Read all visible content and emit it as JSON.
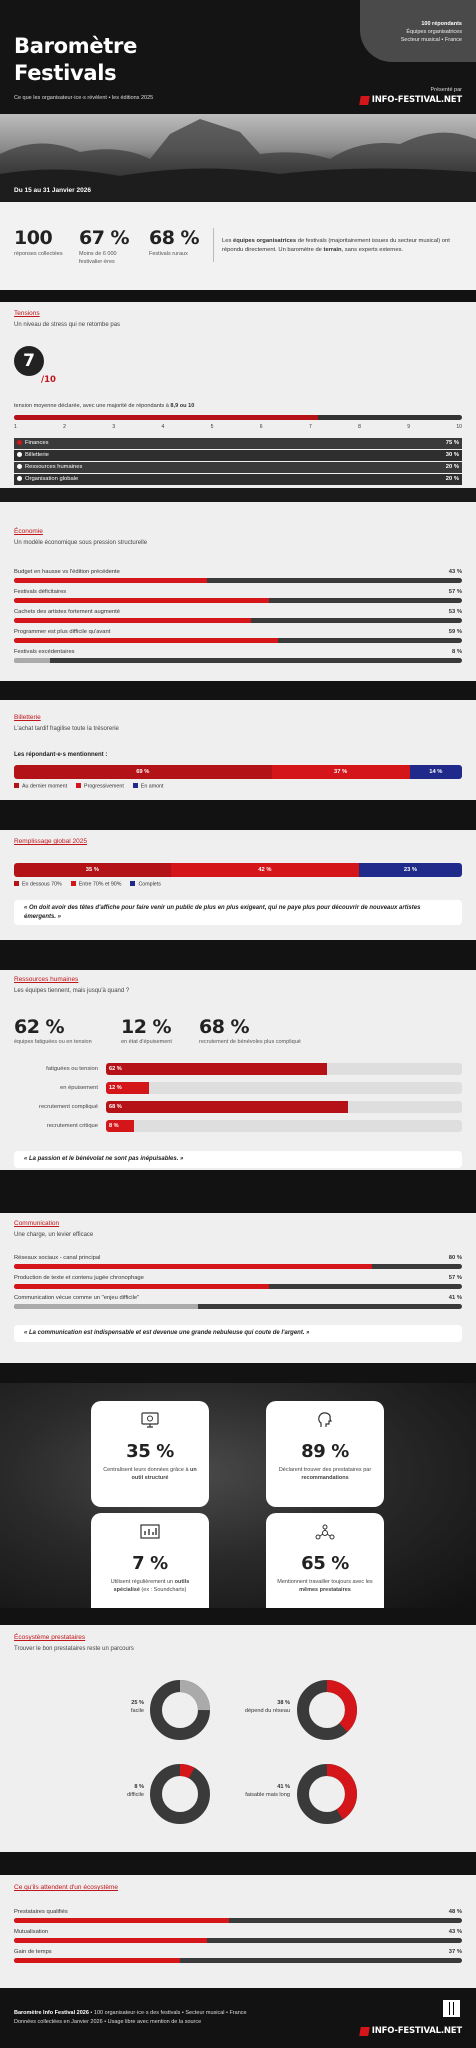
{
  "header": {
    "title_line1": "Baromètre",
    "title_line2": "Festivals",
    "tagline": "Ce que les organisateur·ice·s révèlent • les éditions 2025",
    "respondents": "100 répondants",
    "audience": "Équipes organisatrices",
    "sector": "Secteur musical • France",
    "presented_by": "Présenté par",
    "logo": "INFO-FESTIVAL.NET",
    "dates": "Du 15 au 31 Janvier 2026"
  },
  "kpis": [
    {
      "value": "100",
      "label": "réponses collectées"
    },
    {
      "value": "67 %",
      "label": "Moins de 6 000 festivalier·ères"
    },
    {
      "value": "68 %",
      "label": "Festivals ruraux"
    }
  ],
  "intro": {
    "p1": "Les ",
    "b1": "équipes organisatrices",
    "p2": " de festivals (majoritairement issues du secteur musical) ont répondu directement. Un baromètre de ",
    "b2": "terrain",
    "p3": ", sans experts externes."
  },
  "tensions": {
    "title": "Tensions",
    "subtitle": "Un niveau de stress qui ne retombe pas",
    "score": "7",
    "max": "/10",
    "mean_text": "tension moyenne déclarée, avec une majorité de répondants à ",
    "mean_bold": "8,9 ou 10",
    "mean_value": 7.1,
    "ticks": [
      "1",
      "2",
      "3",
      "4",
      "5",
      "6",
      "7",
      "8",
      "9",
      "10"
    ],
    "items": [
      {
        "label": "Finances",
        "pct": "75 %",
        "color": "#d4161b"
      },
      {
        "label": "Billetterie",
        "pct": "30 %",
        "color": "#ffffff"
      },
      {
        "label": "Ressources humaines",
        "pct": "20 %",
        "color": "#ffffff"
      },
      {
        "label": "Organisation globale",
        "pct": "20 %",
        "color": "#ffffff"
      }
    ]
  },
  "economie": {
    "title": "Économie",
    "subtitle": "Un modèle économique sous pression structurelle",
    "items": [
      {
        "label": "Budget en hausse vs l'édition précédente",
        "pct": "43 %",
        "value": 43
      },
      {
        "label": "Festivals déficitaires",
        "pct": "57 %",
        "value": 57
      },
      {
        "label": "Cachets des artistes fortement augmenté",
        "pct": "53 %",
        "value": 53
      },
      {
        "label": "Programmer est plus difficile qu'avant",
        "pct": "59 %",
        "value": 59
      },
      {
        "label": "Festivals excédentaires",
        "pct": "8 %",
        "value": 8
      }
    ]
  },
  "billetterie": {
    "title": "Billetterie",
    "subtitle": "L'achat tardif fragilise toute la trésorerie",
    "lead": "Les répondant·e·s mentionnent :",
    "segments": [
      {
        "label": "69 %",
        "value": 69,
        "color": "#b31217"
      },
      {
        "label": "37 %",
        "value": 37,
        "color": "#d4161b"
      },
      {
        "label": "14 %",
        "value": 14,
        "color": "#1f2a8a"
      }
    ],
    "legend": [
      "Au dernier moment",
      "Progressivement",
      "En amont"
    ]
  },
  "remplissage": {
    "title": "Remplissage global 2025",
    "segments": [
      {
        "label": "35 %",
        "value": 35,
        "color": "#b31217"
      },
      {
        "label": "42 %",
        "value": 42,
        "color": "#d4161b"
      },
      {
        "label": "23 %",
        "value": 23,
        "color": "#1f2a8a"
      }
    ],
    "legend": [
      "En dessous 70%",
      "Entre 70% et 90%",
      "Complets"
    ],
    "quote": "« On doit avoir des têtes d'affiche pour faire venir un public de plus en plus exigeant, qui ne paye plus pour découvrir de nouveaux artistes émergents. »"
  },
  "rh": {
    "title": "Ressources humaines",
    "subtitle": "Les équipes tiennent, mais jusqu'à quand ?",
    "kpis": [
      {
        "value": "62 %",
        "label": "équipes fatiguées ou en tension"
      },
      {
        "value": "12 %",
        "label": "en état d'épuisement"
      },
      {
        "value": "68 %",
        "label": "recrutement de bénévoles plus compliqué"
      }
    ],
    "bars": [
      {
        "label": "fatiguées ou tension",
        "pct": "62 %",
        "value": 62
      },
      {
        "label": "en épuisement",
        "pct": "12 %",
        "value": 12
      },
      {
        "label": "recrutement compliqué",
        "pct": "68 %",
        "value": 68
      },
      {
        "label": "recrutement critique",
        "pct": "8 %",
        "value": 8
      }
    ],
    "quote": "« La passion et le bénévolat ne sont pas inépuisables. »"
  },
  "communication": {
    "title": "Communication",
    "subtitle": "Une charge, un levier efficace",
    "items": [
      {
        "label": "Réseaux sociaux - canal principal",
        "pct": "80 %",
        "value": 80,
        "color": "#d4161b"
      },
      {
        "label": "Production de texte et contenu jugée chronophage",
        "pct": "57 %",
        "value": 57,
        "color": "#d4161b"
      },
      {
        "label": "Communication vécue comme un \"enjeu difficile\"",
        "pct": "41 %",
        "value": 41,
        "color": "#aaaaaa"
      }
    ],
    "quote": "« La communication est indispensable et est devenue une grande nebuleuse qui coute de l'argent. »"
  },
  "cards": [
    {
      "icon": "computer-icon",
      "value": "35 %",
      "t1": "Centralisent leurs données grâce à ",
      "b": "un outil structuré",
      "t2": ""
    },
    {
      "icon": "head-icon",
      "value": "89 %",
      "t1": "Déclarent trouver des prestataires par ",
      "b": "recommandations",
      "t2": ""
    },
    {
      "icon": "chart-icon",
      "value": "7 %",
      "t1": "Utilisent régulièrement un ",
      "b": "outils spécialisé",
      "t2": " (ex : Soundcharts)"
    },
    {
      "icon": "network-icon",
      "value": "65 %",
      "t1": "Mentionnent travailler toujours avec les ",
      "b": "mêmes prestataires",
      "t2": ""
    }
  ],
  "ecosysteme": {
    "title": "Écosystème prestataires",
    "subtitle": "Trouver le bon prestataires reste un parcours",
    "donuts": [
      {
        "pct": "25 %",
        "label": "facile",
        "value": 25,
        "color": "#aaaaaa"
      },
      {
        "pct": "38 %",
        "label": "dépend du réseau",
        "value": 38,
        "color": "#d4161b"
      },
      {
        "pct": "8 %",
        "label": "difficile",
        "value": 8,
        "color": "#d4161b"
      },
      {
        "pct": "41 %",
        "label": "faisable mais long",
        "value": 41,
        "color": "#d4161b"
      }
    ]
  },
  "attentes": {
    "title": "Ce qu'ils attendent d'un écosystème",
    "items": [
      {
        "label": "Prestataires qualifiés",
        "pct": "48 %",
        "value": 48
      },
      {
        "label": "Mutualisation",
        "pct": "43 %",
        "value": 43
      },
      {
        "label": "Gain de temps",
        "pct": "37 %",
        "value": 37
      }
    ]
  },
  "footer": {
    "l1a": "Baromètre Info Festival 2026",
    "l1b": " • 100 organisateur·ice·s des festivals • Secteur musical • France",
    "l2": "Données collectées en Janvier 2026 • Usage libre avec mention de la source",
    "logo": "INFO-FESTIVAL.NET"
  }
}
